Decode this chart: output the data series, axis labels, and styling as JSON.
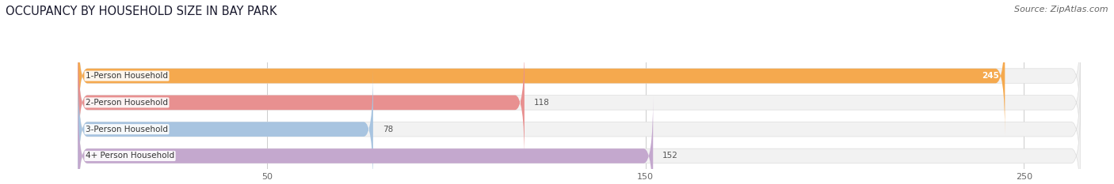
{
  "title": "OCCUPANCY BY HOUSEHOLD SIZE IN BAY PARK",
  "source": "Source: ZipAtlas.com",
  "categories": [
    "1-Person Household",
    "2-Person Household",
    "3-Person Household",
    "4+ Person Household"
  ],
  "values": [
    245,
    118,
    78,
    152
  ],
  "bar_colors": [
    "#F5A94E",
    "#E89090",
    "#A8C4E0",
    "#C4A8CE"
  ],
  "bar_bg_color": "#F0F0F0",
  "xlim_max": 265,
  "xticks": [
    50,
    150,
    250
  ],
  "title_fontsize": 10.5,
  "source_fontsize": 8,
  "label_fontsize": 7.5,
  "value_fontsize": 7.5,
  "tick_fontsize": 8,
  "figsize": [
    14.06,
    2.33
  ],
  "dpi": 100
}
